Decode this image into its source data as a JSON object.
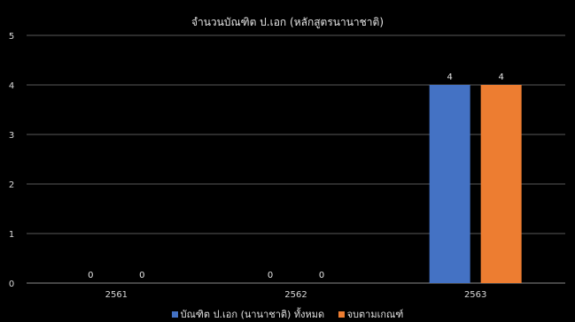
{
  "chart_data": {
    "type": "bar",
    "title": "จำนวนบัณฑิต ป.เอก (หลักสูตรนานาชาติ)",
    "categories": [
      "2561",
      "2562",
      "2563"
    ],
    "series": [
      {
        "name": "บัณฑิต ป.เอก (นานาชาติ) ทั้งหมด",
        "values": [
          0,
          0,
          4
        ],
        "color": "#4472C4"
      },
      {
        "name": "จบตามเกณฑ์",
        "values": [
          0,
          0,
          4
        ],
        "color": "#ED7D31"
      }
    ],
    "yticks": [
      "0",
      "1",
      "2",
      "3",
      "4",
      "5"
    ],
    "ylim": [
      0,
      5
    ],
    "grid": true,
    "data_labels": true,
    "legend": "bottom"
  }
}
